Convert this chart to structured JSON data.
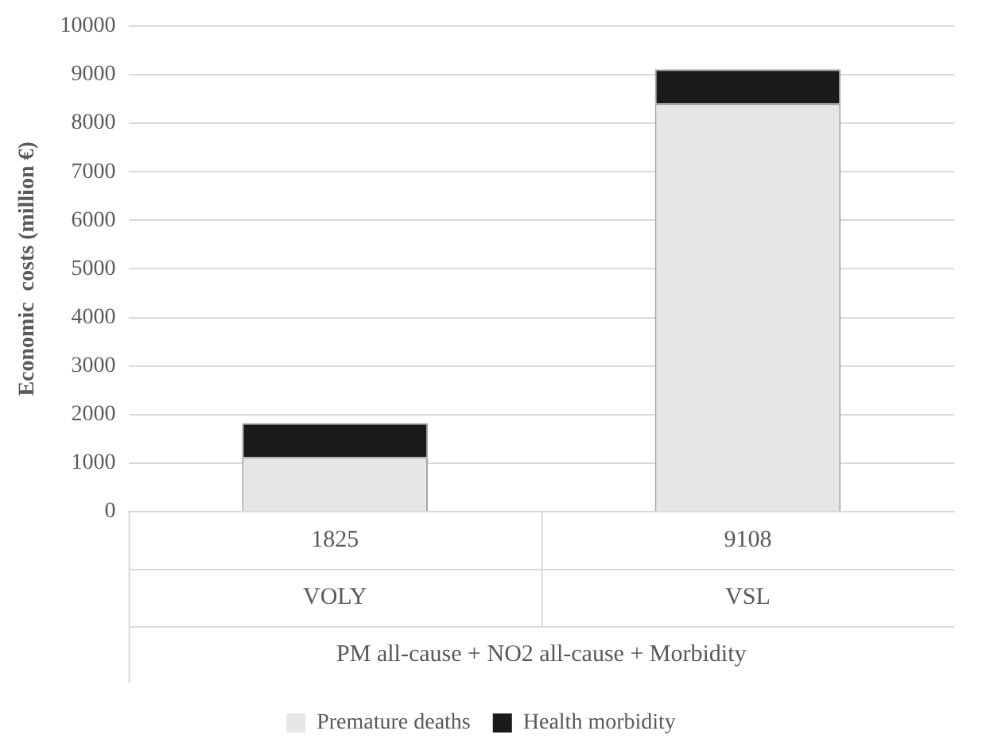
{
  "chart_data": {
    "type": "bar",
    "stacked": true,
    "categories": [
      "VOLY",
      "VSL"
    ],
    "series": [
      {
        "name": "Premature deaths",
        "color": "#e6e6e6",
        "values": [
          1120,
          8400
        ]
      },
      {
        "name": "Health morbidity",
        "color": "#1a1a1a",
        "values": [
          705,
          708
        ]
      }
    ],
    "totals": [
      "1825",
      "9108"
    ],
    "xlabel": "PM all-cause + NO2 all-cause + Morbidity",
    "ylabel": "Economic  costs (million €)",
    "ylim": [
      0,
      10000
    ],
    "yticks": [
      0,
      1000,
      2000,
      3000,
      4000,
      5000,
      6000,
      7000,
      8000,
      9000,
      10000
    ],
    "grid": "y",
    "legend": "bottom"
  }
}
